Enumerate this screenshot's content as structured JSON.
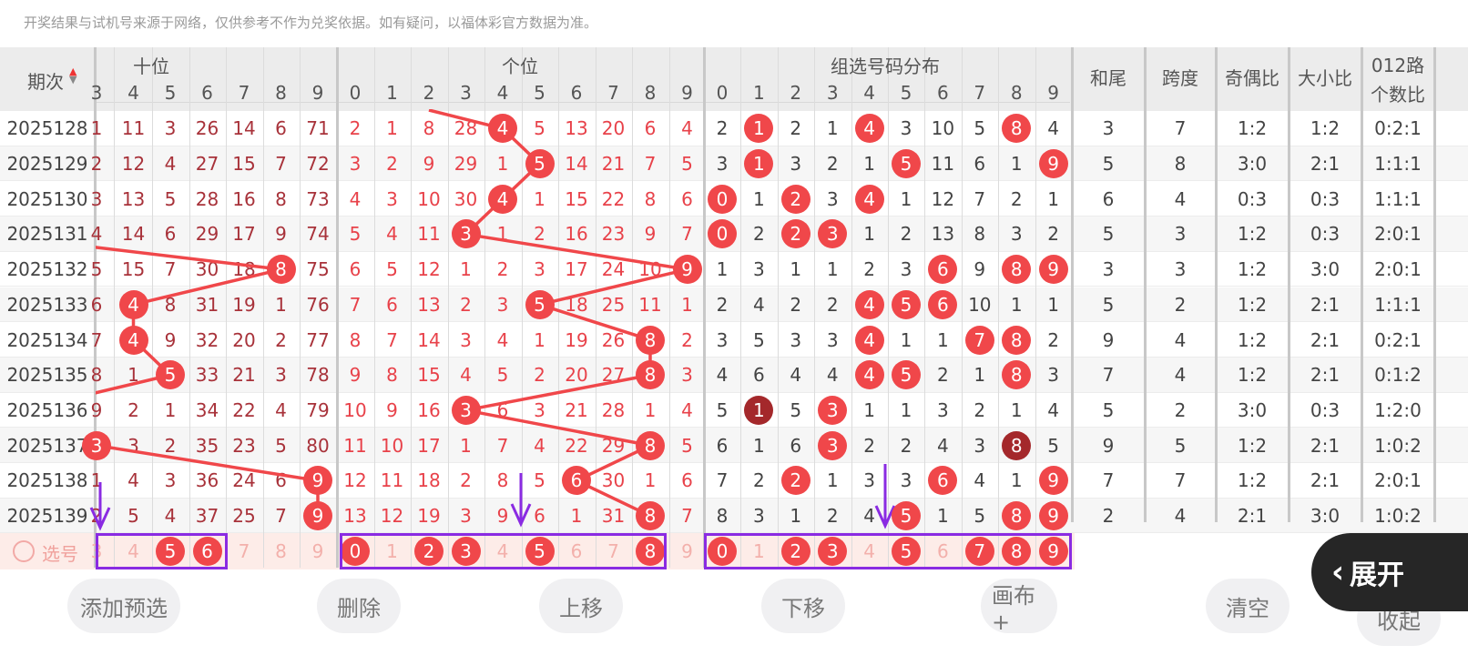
{
  "notice": "开奖结果与试机号来源于网络，仅供参考不作为兑奖依据。如有疑问，以福体彩官方数据为准。",
  "headers": {
    "period": "期次",
    "tens": "十位",
    "units": "个位",
    "group": "组选号码分布",
    "sum_tail": "和尾",
    "span": "跨度",
    "odd_even": "奇偶比",
    "big_small": "大小比",
    "mod012_l1": "012路",
    "mod012_l2": "个数比",
    "tens_digits": [
      "3",
      "4",
      "5",
      "6",
      "7",
      "8",
      "9"
    ],
    "digits": [
      "0",
      "1",
      "2",
      "3",
      "4",
      "5",
      "6",
      "7",
      "8",
      "9"
    ]
  },
  "colors": {
    "ball": "#f0474a",
    "ball_repeat": "#a4282b",
    "selection_box": "#8a2be2",
    "tens_text": "#a8323a",
    "units_text": "#e8424a"
  },
  "rows": [
    {
      "period": "2025128",
      "tens_digit": 1,
      "tens": [
        "1",
        "11",
        "3",
        "26",
        "14",
        "6",
        "71"
      ],
      "unit_digit": 4,
      "units": [
        "2",
        "1",
        "8",
        "28",
        "4",
        "5",
        "13",
        "20",
        "6",
        "4"
      ],
      "group": [
        "2",
        "1",
        "2",
        "1",
        "4",
        "3",
        "10",
        "5",
        "8",
        "4"
      ],
      "group_balls": [
        1,
        4,
        8
      ],
      "group_repeat": [],
      "sum_tail": "3",
      "span": "7",
      "odd_even": "1:2",
      "big_small": "1:2",
      "mod012": "0:2:1"
    },
    {
      "period": "2025129",
      "tens_digit": 1,
      "tens": [
        "2",
        "12",
        "4",
        "27",
        "15",
        "7",
        "72"
      ],
      "unit_digit": 5,
      "units": [
        "3",
        "2",
        "9",
        "29",
        "1",
        "5",
        "14",
        "21",
        "7",
        "5"
      ],
      "group": [
        "3",
        "1",
        "3",
        "2",
        "1",
        "5",
        "11",
        "6",
        "1",
        "9"
      ],
      "group_balls": [
        1,
        5,
        9
      ],
      "group_repeat": [],
      "sum_tail": "5",
      "span": "8",
      "odd_even": "3:0",
      "big_small": "2:1",
      "mod012": "1:1:1"
    },
    {
      "period": "2025130",
      "tens_digit": 2,
      "tens": [
        "3",
        "13",
        "5",
        "28",
        "16",
        "8",
        "73"
      ],
      "unit_digit": 4,
      "units": [
        "4",
        "3",
        "10",
        "30",
        "4",
        "1",
        "15",
        "22",
        "8",
        "6"
      ],
      "group": [
        "0",
        "1",
        "2",
        "3",
        "4",
        "1",
        "12",
        "7",
        "2",
        "1"
      ],
      "group_balls": [
        0,
        2,
        4
      ],
      "group_repeat": [],
      "sum_tail": "6",
      "span": "4",
      "odd_even": "0:3",
      "big_small": "0:3",
      "mod012": "1:1:1"
    },
    {
      "period": "2025131",
      "tens_digit": 0,
      "tens": [
        "4",
        "14",
        "6",
        "29",
        "17",
        "9",
        "74"
      ],
      "unit_digit": 3,
      "units": [
        "5",
        "4",
        "11",
        "3",
        "1",
        "2",
        "16",
        "23",
        "9",
        "7"
      ],
      "group": [
        "0",
        "2",
        "2",
        "3",
        "1",
        "2",
        "13",
        "8",
        "3",
        "2"
      ],
      "group_balls": [
        0,
        2,
        3
      ],
      "group_repeat": [],
      "sum_tail": "5",
      "span": "3",
      "odd_even": "1:2",
      "big_small": "0:3",
      "mod012": "2:0:1"
    },
    {
      "period": "2025132",
      "tens_digit": 8,
      "tens": [
        "5",
        "15",
        "7",
        "30",
        "18",
        "8",
        "75"
      ],
      "unit_digit": 9,
      "units": [
        "6",
        "5",
        "12",
        "1",
        "2",
        "3",
        "17",
        "24",
        "10",
        "9"
      ],
      "group": [
        "1",
        "3",
        "1",
        "1",
        "2",
        "3",
        "6",
        "9",
        "8",
        "9"
      ],
      "group_balls": [
        6,
        8,
        9
      ],
      "group_repeat": [],
      "sum_tail": "3",
      "span": "3",
      "odd_even": "1:2",
      "big_small": "3:0",
      "mod012": "2:0:1"
    },
    {
      "period": "2025133",
      "tens_digit": 4,
      "tens": [
        "6",
        "4",
        "8",
        "31",
        "19",
        "1",
        "76"
      ],
      "unit_digit": 5,
      "units": [
        "7",
        "6",
        "13",
        "2",
        "3",
        "5",
        "18",
        "25",
        "11",
        "1"
      ],
      "group": [
        "2",
        "4",
        "2",
        "2",
        "4",
        "5",
        "6",
        "10",
        "1",
        "1"
      ],
      "group_balls": [
        4,
        5,
        6
      ],
      "group_repeat": [],
      "sum_tail": "5",
      "span": "2",
      "odd_even": "1:2",
      "big_small": "2:1",
      "mod012": "1:1:1"
    },
    {
      "period": "2025134",
      "tens_digit": 4,
      "tens": [
        "7",
        "4",
        "9",
        "32",
        "20",
        "2",
        "77"
      ],
      "unit_digit": 8,
      "units": [
        "8",
        "7",
        "14",
        "3",
        "4",
        "1",
        "19",
        "26",
        "8",
        "2"
      ],
      "group": [
        "3",
        "5",
        "3",
        "3",
        "4",
        "1",
        "1",
        "7",
        "8",
        "2"
      ],
      "group_balls": [
        4,
        7,
        8
      ],
      "group_repeat": [],
      "sum_tail": "9",
      "span": "4",
      "odd_even": "1:2",
      "big_small": "2:1",
      "mod012": "0:2:1"
    },
    {
      "period": "2025135",
      "tens_digit": 5,
      "tens": [
        "8",
        "1",
        "5",
        "33",
        "21",
        "3",
        "78"
      ],
      "unit_digit": 8,
      "units": [
        "9",
        "8",
        "15",
        "4",
        "5",
        "2",
        "20",
        "27",
        "8",
        "3"
      ],
      "group": [
        "4",
        "6",
        "4",
        "4",
        "4",
        "5",
        "2",
        "1",
        "8",
        "3"
      ],
      "group_balls": [
        4,
        5,
        8
      ],
      "group_repeat": [],
      "sum_tail": "7",
      "span": "4",
      "odd_even": "1:2",
      "big_small": "2:1",
      "mod012": "0:1:2"
    },
    {
      "period": "2025136",
      "tens_digit": 1,
      "tens": [
        "9",
        "2",
        "1",
        "34",
        "22",
        "4",
        "79"
      ],
      "unit_digit": 3,
      "units": [
        "10",
        "9",
        "16",
        "3",
        "6",
        "3",
        "21",
        "28",
        "1",
        "4"
      ],
      "group": [
        "5",
        "1",
        "5",
        "3",
        "1",
        "1",
        "3",
        "2",
        "1",
        "4"
      ],
      "group_balls": [
        3
      ],
      "group_repeat": [
        1
      ],
      "sum_tail": "5",
      "span": "2",
      "odd_even": "3:0",
      "big_small": "0:3",
      "mod012": "1:2:0"
    },
    {
      "period": "2025137",
      "tens_digit": 3,
      "tens": [
        "3",
        "3",
        "2",
        "35",
        "23",
        "5",
        "80"
      ],
      "unit_digit": 8,
      "units": [
        "11",
        "10",
        "17",
        "1",
        "7",
        "4",
        "22",
        "29",
        "8",
        "5"
      ],
      "group": [
        "6",
        "1",
        "6",
        "3",
        "2",
        "2",
        "4",
        "3",
        "8",
        "5"
      ],
      "group_balls": [
        3
      ],
      "group_repeat": [
        8
      ],
      "sum_tail": "9",
      "span": "5",
      "odd_even": "1:2",
      "big_small": "2:1",
      "mod012": "1:0:2"
    },
    {
      "period": "2025138",
      "tens_digit": 9,
      "tens": [
        "1",
        "4",
        "3",
        "36",
        "24",
        "6",
        "9"
      ],
      "unit_digit": 6,
      "units": [
        "12",
        "11",
        "18",
        "2",
        "8",
        "5",
        "6",
        "30",
        "1",
        "6"
      ],
      "group": [
        "7",
        "2",
        "2",
        "1",
        "3",
        "3",
        "6",
        "4",
        "1",
        "9"
      ],
      "group_balls": [
        2,
        6,
        9
      ],
      "group_repeat": [],
      "sum_tail": "7",
      "span": "7",
      "odd_even": "1:2",
      "big_small": "2:1",
      "mod012": "2:0:1"
    },
    {
      "period": "2025139",
      "tens_digit": 9,
      "tens": [
        "2",
        "5",
        "4",
        "37",
        "25",
        "7",
        "9"
      ],
      "unit_digit": 8,
      "units": [
        "13",
        "12",
        "19",
        "3",
        "9",
        "6",
        "1",
        "31",
        "8",
        "7"
      ],
      "group": [
        "8",
        "3",
        "1",
        "2",
        "4",
        "5",
        "1",
        "5",
        "8",
        "9"
      ],
      "group_balls": [
        5,
        8,
        9
      ],
      "group_repeat": [],
      "sum_tail": "2",
      "span": "4",
      "odd_even": "2:1",
      "big_small": "3:0",
      "mod012": "1:0:2"
    }
  ],
  "selection": {
    "label": "选号",
    "tens_selected": [
      5,
      6
    ],
    "units_selected": [
      0,
      2,
      3,
      5,
      8
    ],
    "group_selected": [
      0,
      2,
      3,
      5,
      7,
      8,
      9
    ]
  },
  "buttons": {
    "add": "添加预选",
    "delete": "删除",
    "up": "上移",
    "down": "下移",
    "canvas": "画布+",
    "clear": "清空",
    "collapse": "收起",
    "expand": "展开"
  }
}
